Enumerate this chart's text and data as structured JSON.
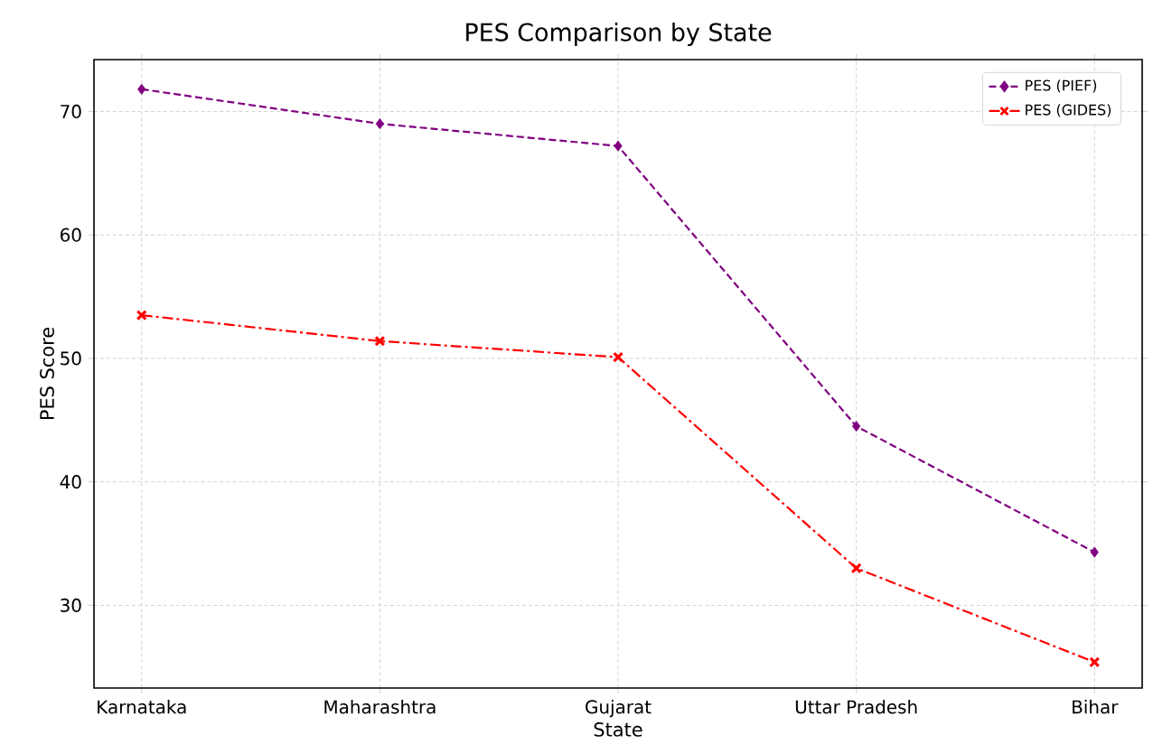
{
  "chart_data": {
    "type": "line",
    "title": "PES Comparison by State",
    "xlabel": "State",
    "ylabel": "PES Score",
    "categories": [
      "Karnataka",
      "Maharashtra",
      "Gujarat",
      "Uttar Pradesh",
      "Bihar"
    ],
    "series": [
      {
        "name": "PES (PIEF)",
        "color": "#800080",
        "values": [
          71.8,
          69.0,
          67.2,
          44.5,
          34.3
        ],
        "marker": "diamond",
        "line_style": "dashed"
      },
      {
        "name": "PES (GIDES)",
        "color": "#ff0000",
        "values": [
          53.5,
          51.4,
          50.1,
          33.0,
          25.4
        ],
        "marker": "cross",
        "line_style": "dashdot"
      }
    ],
    "ylim": [
      23.3,
      74.2
    ],
    "yticks": [
      30,
      40,
      50,
      60,
      70
    ],
    "grid": true,
    "legend": "top right"
  }
}
